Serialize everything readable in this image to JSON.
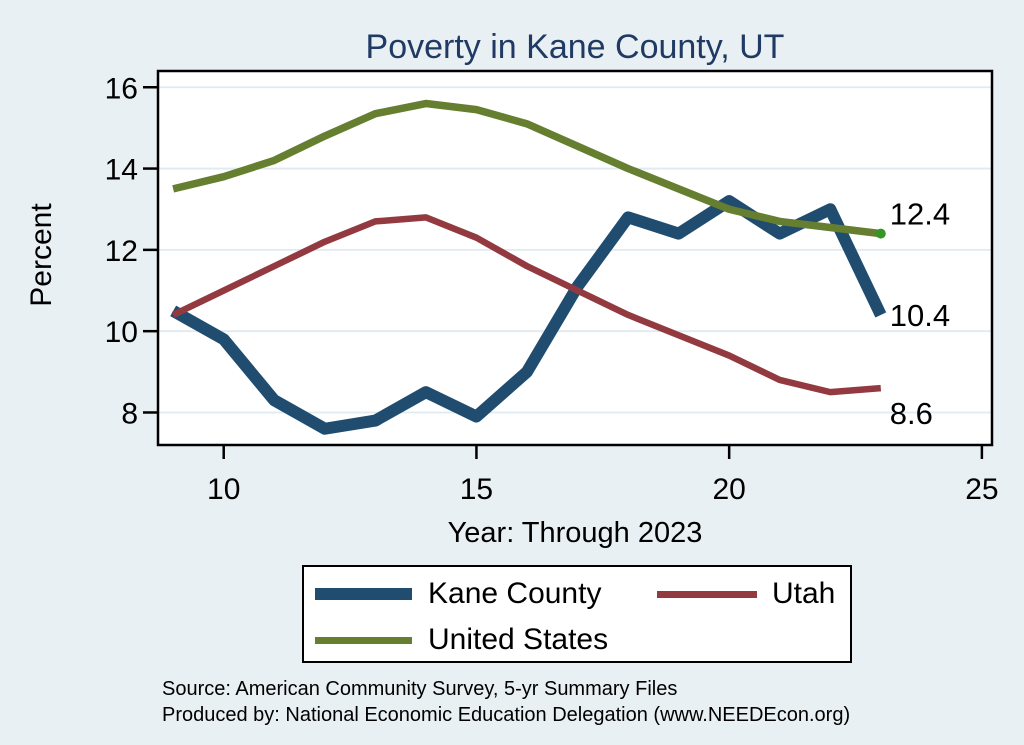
{
  "title": "Poverty in Kane County, UT",
  "colors": {
    "background": "#e9f0f4",
    "plot_background": "#ffffff",
    "grid": "#dfeaf2",
    "axis": "#000000",
    "title_text": "#203a64",
    "kane_county": "#1f4c6f",
    "utah": "#933a40",
    "united_states": "#657e2f",
    "us_end_marker": "#349623"
  },
  "chart_data": {
    "type": "line",
    "title": "Poverty in Kane County, UT",
    "xlabel": "Year: Through 2023",
    "ylabel": "Percent",
    "x": [
      9,
      10,
      11,
      12,
      13,
      14,
      15,
      16,
      17,
      18,
      19,
      20,
      21,
      22,
      23
    ],
    "series": [
      {
        "name": "Kane County",
        "color": "#1f4c6f",
        "line_width": 12,
        "values": [
          10.5,
          9.8,
          8.3,
          7.6,
          7.8,
          8.5,
          7.9,
          9.0,
          11.1,
          12.8,
          12.4,
          13.2,
          12.4,
          13.0,
          10.4
        ],
        "end_label": "10.4"
      },
      {
        "name": "Utah",
        "color": "#933a40",
        "line_width": 6.5,
        "values": [
          10.4,
          11.0,
          11.6,
          12.2,
          12.7,
          12.8,
          12.3,
          11.6,
          11.0,
          10.4,
          9.9,
          9.4,
          8.8,
          8.5,
          8.6
        ],
        "end_label": "8.6"
      },
      {
        "name": "United States",
        "color": "#657e2f",
        "line_width": 7.5,
        "values": [
          13.5,
          13.8,
          14.2,
          14.8,
          15.35,
          15.6,
          15.45,
          15.1,
          14.55,
          14.0,
          13.5,
          13.0,
          12.7,
          12.55,
          12.4
        ],
        "end_label": "12.4",
        "end_marker": true,
        "marker_color": "#349623"
      }
    ],
    "xticks": {
      "values": [
        10,
        15,
        20,
        25
      ],
      "labels": [
        "10",
        "15",
        "20",
        "25"
      ]
    },
    "yticks": {
      "values": [
        8,
        10,
        12,
        14,
        16
      ],
      "labels": [
        "8",
        "10",
        "12",
        "14",
        "16"
      ]
    },
    "xlim": [
      8.7,
      25.2
    ],
    "ylim": [
      7.2,
      16.4
    ],
    "grid": true,
    "legend_position": "bottom"
  },
  "legend": {
    "entries": [
      {
        "label": "Kane County",
        "color": "#1f4c6f",
        "swatch_height": 12
      },
      {
        "label": "Utah",
        "color": "#933a40",
        "swatch_height": 7
      },
      {
        "label": "United States",
        "color": "#657e2f",
        "swatch_height": 7
      }
    ]
  },
  "source": {
    "line1": "Source: American Community Survey, 5-yr Summary Files",
    "line2": "Produced by: National Economic Education Delegation (www.NEEDEcon.org)"
  }
}
